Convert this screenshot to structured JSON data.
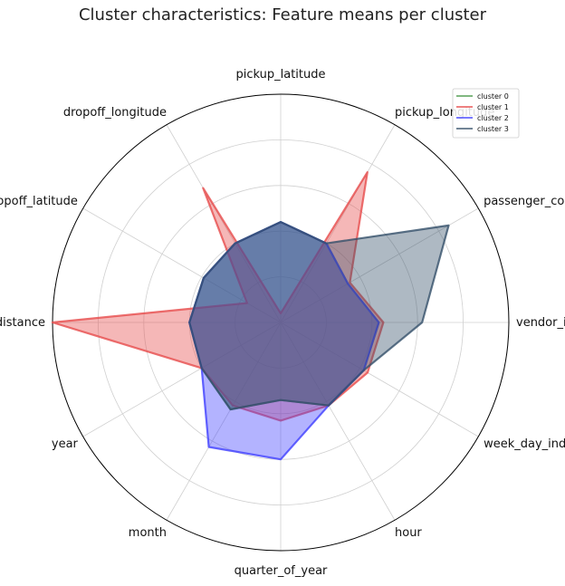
{
  "chart_data": {
    "type": "radar",
    "title": "Cluster characteristics: Feature means per cluster",
    "axes": [
      "pickup_latitude",
      "pickup_longitude",
      "passenger_count",
      "vendor_id",
      "week_day_index",
      "hour",
      "quarter_of_year",
      "month",
      "year",
      "distance",
      "dropoff_latitude",
      "dropoff_longitude"
    ],
    "rmax": 1.0,
    "grid_levels": [
      0.2,
      0.4,
      0.6,
      0.8
    ],
    "legend_position": "top-right",
    "series": [
      {
        "name": "cluster 0",
        "color": "#4a9a4a",
        "values": [
          0.44,
          0.4,
          0.34,
          0.43,
          0.42,
          0.42,
          0.34,
          0.44,
          0.4,
          0.4,
          0.39,
          0.4
        ]
      },
      {
        "name": "cluster 1",
        "color": "#e74c4c",
        "values": [
          0.04,
          0.76,
          0.35,
          0.45,
          0.44,
          0.42,
          0.43,
          0.42,
          0.4,
          1.0,
          0.17,
          0.68
        ]
      },
      {
        "name": "cluster 2",
        "color": "#4040ff",
        "values": [
          0.44,
          0.4,
          0.34,
          0.43,
          0.42,
          0.42,
          0.6,
          0.63,
          0.4,
          0.4,
          0.39,
          0.4
        ]
      },
      {
        "name": "cluster 3",
        "color": "#34506a",
        "values": [
          0.44,
          0.4,
          0.85,
          0.62,
          0.42,
          0.42,
          0.34,
          0.44,
          0.4,
          0.4,
          0.39,
          0.4
        ]
      }
    ]
  }
}
